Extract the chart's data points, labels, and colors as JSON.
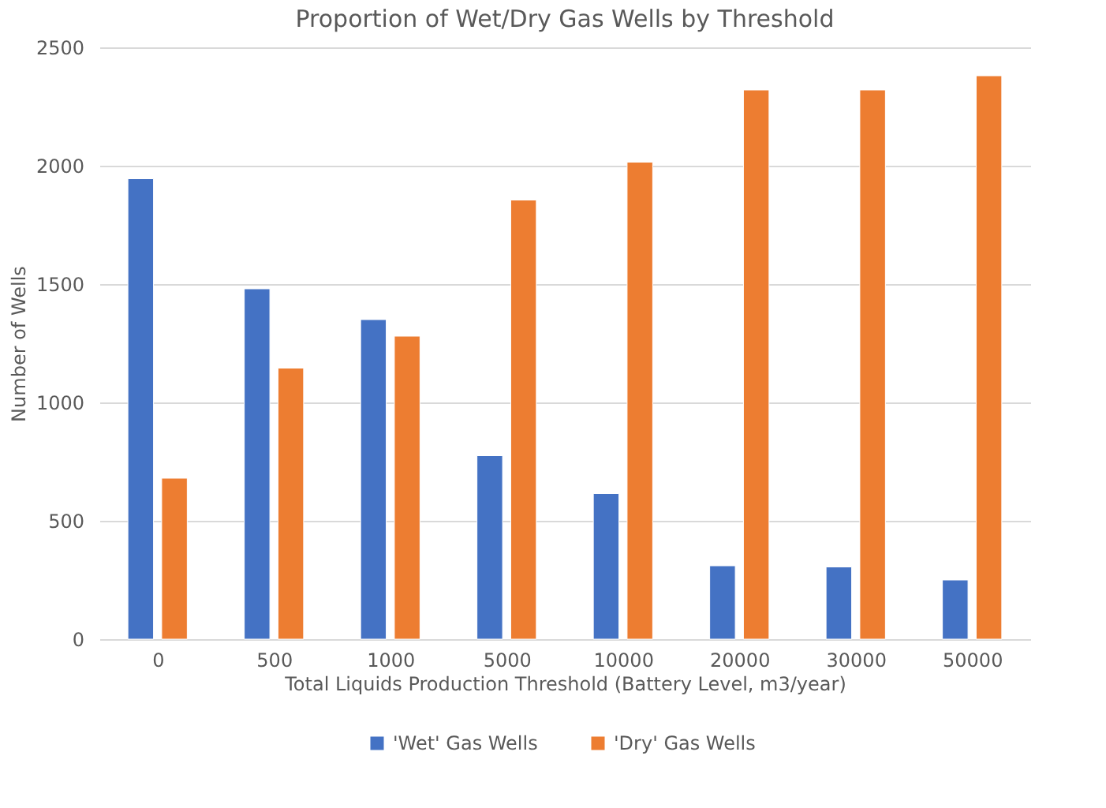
{
  "chart_data": {
    "type": "bar",
    "title": "Proportion of Wet/Dry Gas Wells by Threshold",
    "xlabel": "Total Liquids Production Threshold (Battery Level, m3/year)",
    "ylabel": "Number of Wells",
    "categories": [
      "0",
      "500",
      "1000",
      "5000",
      "10000",
      "20000",
      "30000",
      "50000"
    ],
    "series": [
      {
        "name": "'Wet' Gas Wells",
        "color": "#4472c4",
        "values": [
          1945,
          1480,
          1350,
          775,
          615,
          310,
          305,
          250
        ]
      },
      {
        "name": "'Dry' Gas Wells",
        "color": "#ed7d31",
        "values": [
          680,
          1145,
          1280,
          1855,
          2015,
          2320,
          2320,
          2380
        ]
      }
    ],
    "ylim": [
      0,
      2500
    ],
    "yticks": [
      0,
      500,
      1000,
      1500,
      2000,
      2500
    ],
    "grid": "y",
    "legend": "bottom"
  }
}
